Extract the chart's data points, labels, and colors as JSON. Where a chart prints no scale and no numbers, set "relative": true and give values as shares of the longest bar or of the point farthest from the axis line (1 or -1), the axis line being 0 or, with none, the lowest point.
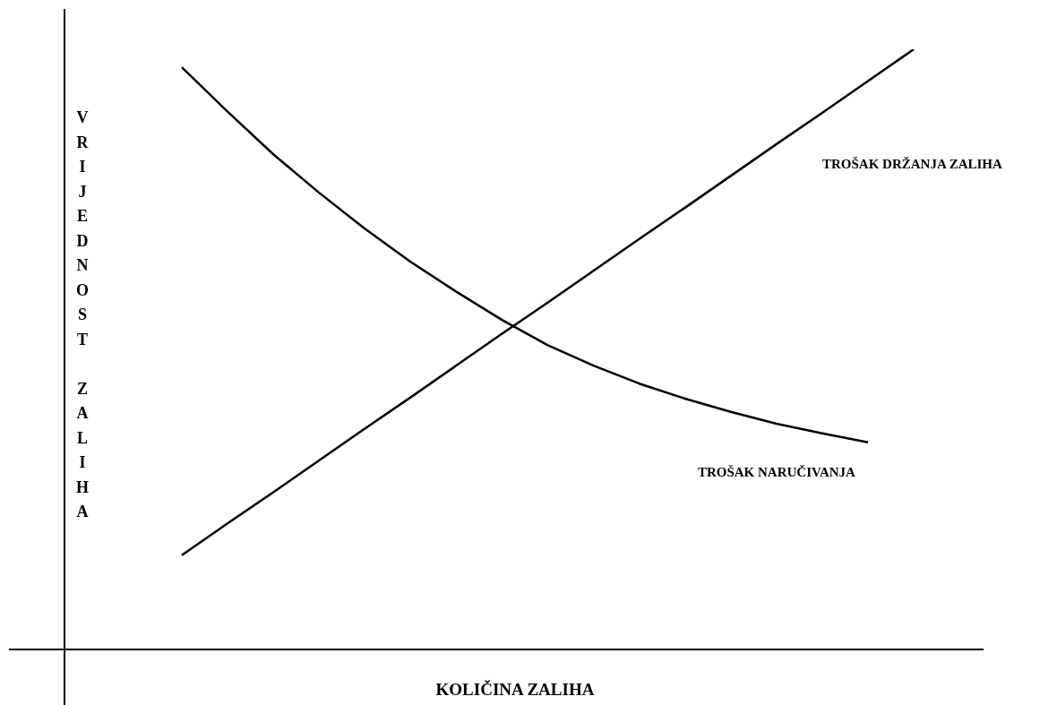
{
  "chart_data": {
    "type": "line",
    "relative": true,
    "xlabel": "KOLIČINA ZALIHA",
    "ylabel": "VRIJEDNOST ZALIHA",
    "categories": [
      null,
      null,
      null,
      null,
      null,
      null,
      null,
      null,
      null,
      null,
      null,
      null,
      null,
      null,
      null,
      null,
      null
    ],
    "series": [
      {
        "name": "TROŠAK NARUČIVANJA",
        "color": "#000000",
        "values": [
          0.97,
          0.896,
          0.825,
          0.761,
          0.701,
          0.646,
          0.596,
          0.549,
          0.507,
          0.473,
          0.443,
          0.418,
          0.396,
          0.376,
          0.36,
          0.345,
          null
        ]
      },
      {
        "name": "TROŠAK DRŽANJA ZALIHA",
        "color": "#000000",
        "values": [
          0.157,
          0.21,
          0.262,
          0.315,
          0.368,
          0.42,
          0.473,
          0.526,
          0.578,
          0.631,
          0.684,
          0.736,
          0.789,
          0.842,
          0.894,
          0.947,
          1
        ]
      }
    ],
    "legend": false,
    "grid": false,
    "marker": "none",
    "line_style": "solid"
  }
}
